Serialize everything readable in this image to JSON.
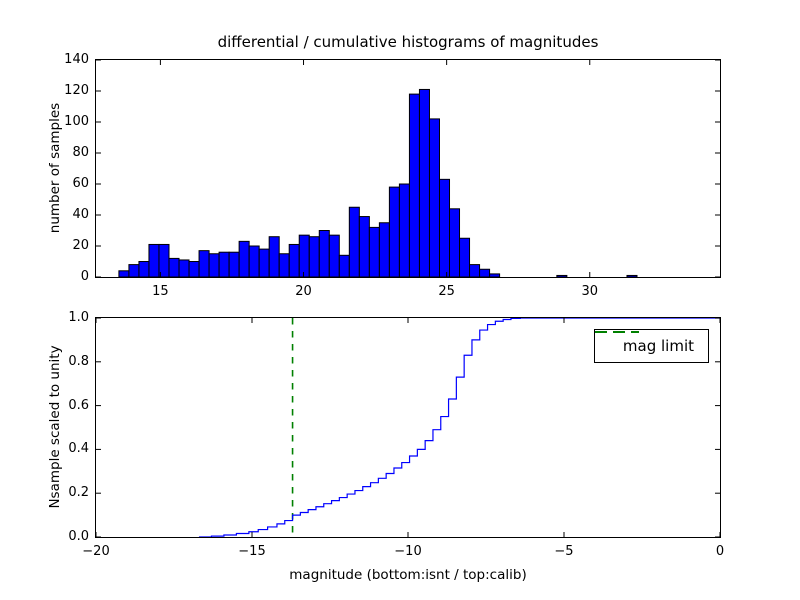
{
  "figure": {
    "background": "#ffffff"
  },
  "chart_data": [
    {
      "type": "bar",
      "subtype": "histogram",
      "title": "differential / cumulative histograms of magnitudes",
      "ylabel": "number of samples",
      "xlim": [
        12.75,
        34.55
      ],
      "ylim": [
        0,
        140
      ],
      "xticks": [
        15,
        20,
        25,
        30
      ],
      "yticks": [
        0,
        20,
        40,
        60,
        80,
        100,
        120,
        140
      ],
      "grid": false,
      "bar_color": "#0000ff",
      "bar_edge_color": "#000000",
      "bin_width": 0.35,
      "bars": [
        [
          13.55,
          4
        ],
        [
          13.9,
          8
        ],
        [
          14.25,
          10
        ],
        [
          14.6,
          21
        ],
        [
          14.95,
          21
        ],
        [
          15.3,
          12
        ],
        [
          15.65,
          11
        ],
        [
          16.0,
          10
        ],
        [
          16.35,
          17
        ],
        [
          16.7,
          15
        ],
        [
          17.05,
          16
        ],
        [
          17.4,
          16
        ],
        [
          17.75,
          23
        ],
        [
          18.1,
          20
        ],
        [
          18.45,
          18
        ],
        [
          18.8,
          26
        ],
        [
          19.15,
          15
        ],
        [
          19.5,
          21
        ],
        [
          19.85,
          27
        ],
        [
          20.2,
          26
        ],
        [
          20.55,
          30
        ],
        [
          20.9,
          27
        ],
        [
          21.25,
          14
        ],
        [
          21.6,
          45
        ],
        [
          21.95,
          39
        ],
        [
          22.3,
          32
        ],
        [
          22.65,
          35
        ],
        [
          23.0,
          58
        ],
        [
          23.35,
          60
        ],
        [
          23.7,
          118
        ],
        [
          24.05,
          121
        ],
        [
          24.4,
          102
        ],
        [
          24.75,
          63
        ],
        [
          25.1,
          44
        ],
        [
          25.45,
          25
        ],
        [
          25.8,
          8
        ],
        [
          26.15,
          5
        ],
        [
          26.5,
          2
        ],
        [
          28.85,
          1
        ],
        [
          31.3,
          1
        ]
      ]
    },
    {
      "type": "line",
      "subtype": "cumulative-step",
      "ylabel": "Nsample scaled to unity",
      "xlabel": "magnitude (bottom:isnt / top:calib)",
      "xlim": [
        -20,
        0
      ],
      "ylim": [
        0.0,
        1.0
      ],
      "xticks": [
        {
          "v": -20,
          "label": "−20"
        },
        {
          "v": -15,
          "label": "−15"
        },
        {
          "v": -10,
          "label": "−10"
        },
        {
          "v": -5,
          "label": "−5"
        },
        {
          "v": 0,
          "label": "0"
        }
      ],
      "yticks": [
        {
          "v": 0.0,
          "label": "0.0"
        },
        {
          "v": 0.2,
          "label": "0.2"
        },
        {
          "v": 0.4,
          "label": "0.4"
        },
        {
          "v": 0.6,
          "label": "0.6"
        },
        {
          "v": 0.8,
          "label": "0.8"
        },
        {
          "v": 1.0,
          "label": "1.0"
        }
      ],
      "grid": false,
      "line_color": "#0000ff",
      "legend_label": "mag limit",
      "legend_position": "upper right",
      "mag_limit": {
        "x": -13.7,
        "color": "#008000",
        "style": "dashed"
      },
      "points": [
        [
          -16.7,
          0.0
        ],
        [
          -16.3,
          0.004
        ],
        [
          -15.9,
          0.009
        ],
        [
          -15.5,
          0.016
        ],
        [
          -15.1,
          0.024
        ],
        [
          -14.8,
          0.034
        ],
        [
          -14.5,
          0.046
        ],
        [
          -14.2,
          0.06
        ],
        [
          -13.95,
          0.075
        ],
        [
          -13.7,
          0.1
        ],
        [
          -13.45,
          0.112
        ],
        [
          -13.2,
          0.125
        ],
        [
          -12.95,
          0.138
        ],
        [
          -12.7,
          0.152
        ],
        [
          -12.45,
          0.166
        ],
        [
          -12.2,
          0.18
        ],
        [
          -11.95,
          0.196
        ],
        [
          -11.7,
          0.212
        ],
        [
          -11.45,
          0.23
        ],
        [
          -11.2,
          0.248
        ],
        [
          -10.95,
          0.268
        ],
        [
          -10.7,
          0.29
        ],
        [
          -10.45,
          0.315
        ],
        [
          -10.2,
          0.34
        ],
        [
          -9.95,
          0.37
        ],
        [
          -9.7,
          0.4
        ],
        [
          -9.45,
          0.44
        ],
        [
          -9.2,
          0.49
        ],
        [
          -8.95,
          0.55
        ],
        [
          -8.7,
          0.63
        ],
        [
          -8.45,
          0.73
        ],
        [
          -8.2,
          0.83
        ],
        [
          -7.95,
          0.9
        ],
        [
          -7.7,
          0.945
        ],
        [
          -7.45,
          0.97
        ],
        [
          -7.2,
          0.985
        ],
        [
          -6.95,
          0.993
        ],
        [
          -6.7,
          0.998
        ],
        [
          -6.4,
          1.0
        ],
        [
          0.0,
          1.0
        ]
      ]
    }
  ]
}
